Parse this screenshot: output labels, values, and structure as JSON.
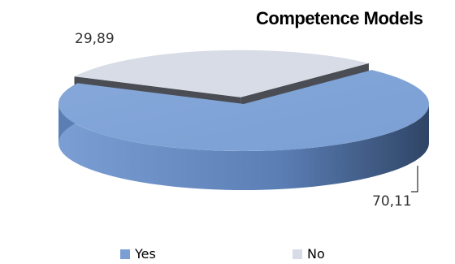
{
  "chart_data": {
    "type": "pie",
    "title": "Competence Models",
    "categories": [
      "Yes",
      "No"
    ],
    "values": [
      70.11,
      29.89
    ],
    "value_labels": [
      "70,11",
      "29,89"
    ],
    "three_d": true,
    "exploded_slice": "No",
    "legend_position": "bottom",
    "colors": {
      "Yes": "#7b9fd4",
      "Yes_side": "#5b7eb5",
      "No": "#d7dce6",
      "No_side": "#4a4e54"
    }
  }
}
